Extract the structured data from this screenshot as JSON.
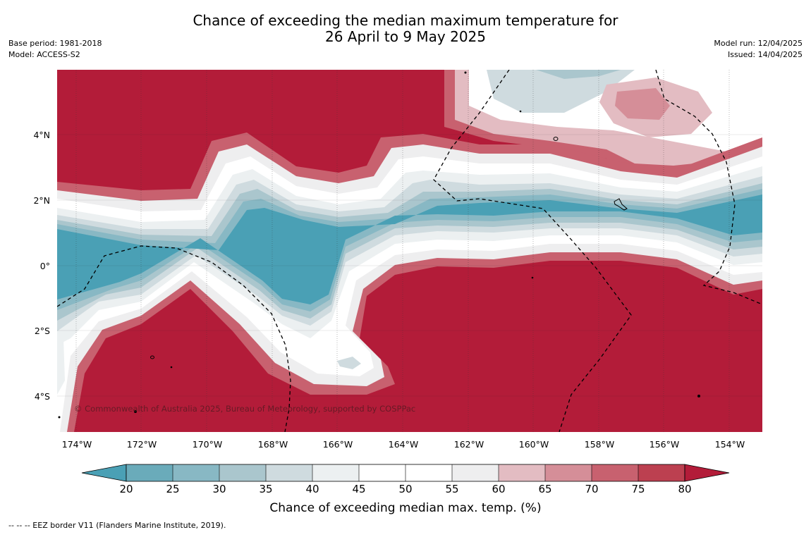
{
  "title_line1": "Chance of exceeding the median maximum temperature for",
  "title_line2": "26 April to 9 May 2025",
  "base_period": "Base period: 1981-2018",
  "model": "Model: ACCESS-S2",
  "model_run": "Model run: 12/04/2025",
  "issued": "Issued: 14/04/2025",
  "copyright": "© Commonwealth of Australia 2025, Bureau of Meteorology, supported by COSPPac",
  "lon_labels": [
    "174°W",
    "172°W",
    "170°W",
    "168°W",
    "166°W",
    "164°W",
    "162°W",
    "160°W",
    "158°W",
    "156°W",
    "154°W"
  ],
  "lat_labels": [
    "4°N",
    "2°N",
    "0°",
    "2°S",
    "4°S"
  ],
  "colorbar": {
    "label": "Chance of exceeding median max. temp. (%)",
    "ticks": [
      "20",
      "25",
      "30",
      "35",
      "40",
      "45",
      "50",
      "55",
      "60",
      "65",
      "70",
      "75",
      "80"
    ],
    "colors": {
      "below20": "#4aa0b5",
      "bins": [
        "#6aabba",
        "#88b8c4",
        "#aac6cd",
        "#cfdbdf",
        "#ecf0f1",
        "#ffffff",
        "#ffffff",
        "#eeeeef",
        "#e3bcc2",
        "#d58e98",
        "#c8616f",
        "#bc4050"
      ],
      "above80": "#b31c39"
    }
  },
  "footer": "--  --  -- EEZ border V11 (Flanders Marine Institute, 2019)."
}
